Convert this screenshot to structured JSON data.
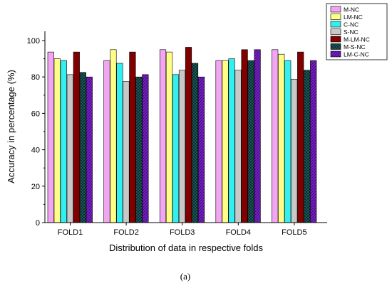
{
  "chart_data": {
    "type": "bar",
    "xlabel": "Distribution of data in respective folds",
    "ylabel": "Accuracy in percentage (%)",
    "ylim": [
      0,
      105
    ],
    "yticks": [
      0,
      20,
      40,
      60,
      80,
      100
    ],
    "categories": [
      "FOLD1",
      "FOLD2",
      "FOLD3",
      "FOLD4",
      "FOLD5"
    ],
    "legend_position": "top-right",
    "grid": false,
    "series": [
      {
        "name": "M-NC",
        "color": "#f2a6f2",
        "pattern": "solid",
        "values": [
          93.7,
          89.0,
          95.0,
          89.0,
          95.0
        ]
      },
      {
        "name": "LM-NC",
        "color": "#ffff88",
        "pattern": "solid",
        "values": [
          90.0,
          95.0,
          93.7,
          89.0,
          92.5
        ]
      },
      {
        "name": "C-NC",
        "color": "#33f0f0",
        "pattern": "solid",
        "values": [
          89.0,
          87.5,
          81.3,
          90.0,
          89.0
        ]
      },
      {
        "name": "S-NC",
        "color": "#c8c8c8",
        "pattern": "solid",
        "values": [
          81.3,
          77.5,
          83.7,
          83.7,
          78.8
        ]
      },
      {
        "name": "M-LM-NC",
        "color": "#800000",
        "pattern": "solid",
        "values": [
          93.7,
          93.7,
          96.3,
          95.0,
          93.7
        ]
      },
      {
        "name": "M-S-NC",
        "color": "#0d6e6e",
        "pattern": "cross",
        "values": [
          82.5,
          80.0,
          87.5,
          89.0,
          83.7
        ]
      },
      {
        "name": "LM-C-NC",
        "color": "#7a1fc8",
        "pattern": "diag",
        "values": [
          80.0,
          81.3,
          80.0,
          95.0,
          89.0
        ]
      }
    ]
  },
  "caption": "(a)"
}
